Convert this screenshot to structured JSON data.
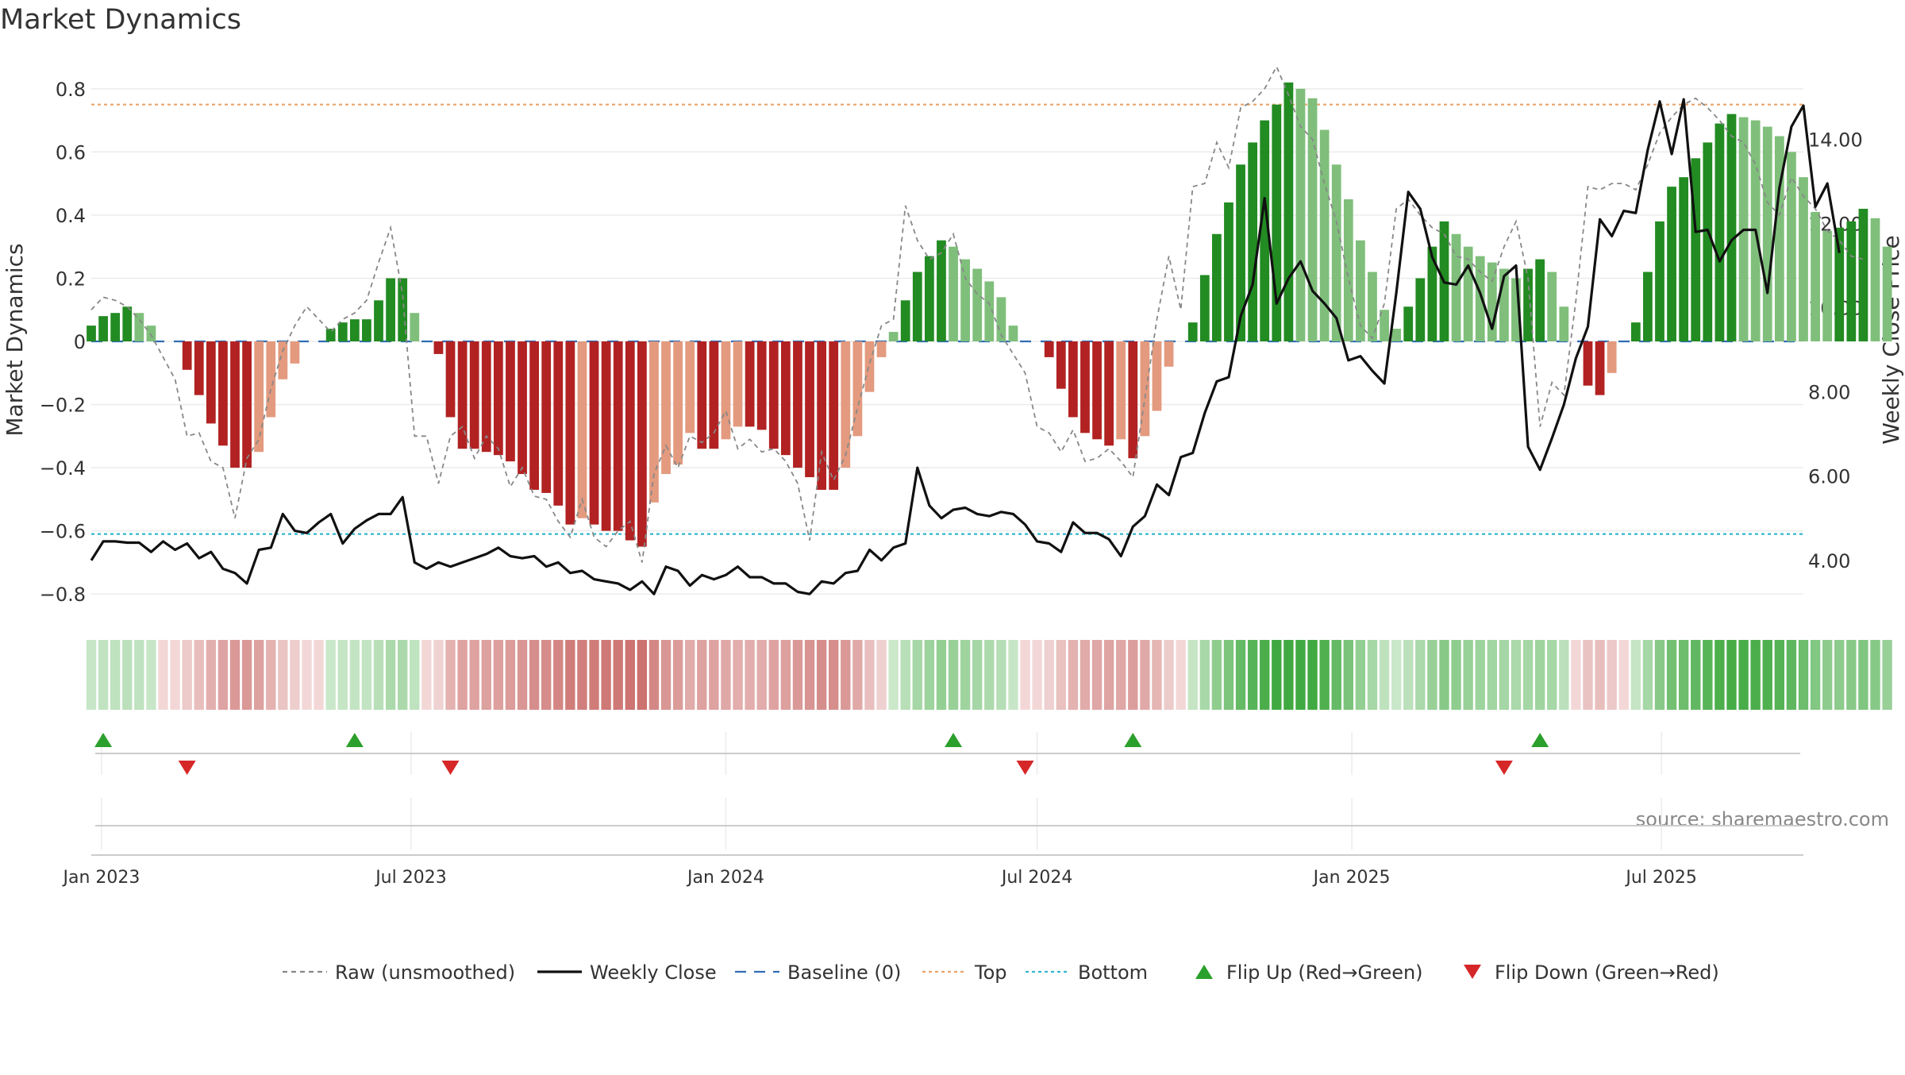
{
  "chart_data": {
    "type": "bar",
    "title": "Market Dynamics",
    "ylabel": "Market Dynamics",
    "y2label": "Weekly Close Price",
    "source": "source: sharemaestro.com",
    "ylim": [
      -0.88,
      0.88
    ],
    "y2lim": [
      2.6,
      15.8
    ],
    "yticks": [
      0.8,
      0.6,
      0.4,
      0.2,
      0,
      -0.2,
      -0.4,
      -0.6,
      -0.8
    ],
    "ytick_labels": [
      "0.8",
      "0.6",
      "0.4",
      "0.2",
      "0",
      "−0.2",
      "−0.4",
      "−0.6",
      "−0.8"
    ],
    "y2ticks": [
      14,
      12,
      10,
      8,
      6,
      4
    ],
    "y2tick_labels": [
      "14.00",
      "12.00",
      "10.00",
      "8.00",
      "6.00",
      "4.00"
    ],
    "x_range": [
      "2022-12-26",
      "2025-09-22"
    ],
    "xticks": [
      "2023-01-01",
      "2023-07-01",
      "2024-01-01",
      "2024-07-01",
      "2025-01-01",
      "2025-07-01"
    ],
    "xtick_labels": [
      "Jan 2023",
      "Jul 2023",
      "Jan 2024",
      "Jul 2024",
      "Jan 2025",
      "Jul 2025"
    ],
    "top_level": 0.75,
    "bottom_level": -0.61,
    "grid": true,
    "legend_position": "bottom-center",
    "legend": [
      {
        "label": "Raw (unsmoothed)",
        "kind": "dashed-line",
        "color": "#888888"
      },
      {
        "label": "Weekly Close",
        "kind": "line",
        "color": "#111111"
      },
      {
        "label": "Baseline (0)",
        "kind": "dashed-line",
        "color": "#2f6db3"
      },
      {
        "label": "Top",
        "kind": "dotted-line",
        "color": "#e8a36a"
      },
      {
        "label": "Bottom",
        "kind": "dotted-line",
        "color": "#33b6cf"
      },
      {
        "label": "Flip Up (Red→Green)",
        "kind": "triangle-up",
        "color": "#2ca02c"
      },
      {
        "label": "Flip Down (Green→Red)",
        "kind": "triangle-down",
        "color": "#d62728"
      }
    ],
    "colors": {
      "pos_strong": "#228b22",
      "pos_weak": "#7fbf7b",
      "neg_strong": "#b22222",
      "neg_weak": "#e39a7e",
      "grid": "#ebebeb"
    },
    "start_week": "2022-12-26",
    "series": [
      {
        "name": "Market Dynamics",
        "values": [
          0.05,
          0.08,
          0.09,
          0.11,
          0.09,
          0.05,
          0,
          0,
          -0.09,
          -0.17,
          -0.26,
          -0.33,
          -0.4,
          -0.4,
          -0.35,
          -0.24,
          -0.12,
          -0.07,
          0,
          0,
          0.04,
          0.06,
          0.07,
          0.07,
          0.13,
          0.2,
          0.2,
          0.09,
          0,
          -0.04,
          -0.24,
          -0.34,
          -0.34,
          -0.35,
          -0.36,
          -0.38,
          -0.42,
          -0.47,
          -0.48,
          -0.52,
          -0.58,
          -0.56,
          -0.58,
          -0.6,
          -0.6,
          -0.63,
          -0.65,
          -0.51,
          -0.42,
          -0.39,
          -0.29,
          -0.34,
          -0.34,
          -0.31,
          -0.27,
          -0.27,
          -0.28,
          -0.34,
          -0.36,
          -0.4,
          -0.43,
          -0.47,
          -0.47,
          -0.4,
          -0.3,
          -0.16,
          -0.05,
          0.03,
          0.13,
          0.22,
          0.27,
          0.32,
          0.3,
          0.26,
          0.23,
          0.19,
          0.14,
          0.05,
          0,
          0,
          -0.05,
          -0.15,
          -0.24,
          -0.29,
          -0.31,
          -0.33,
          -0.31,
          -0.37,
          -0.3,
          -0.22,
          -0.08,
          0,
          0.06,
          0.21,
          0.34,
          0.44,
          0.56,
          0.63,
          0.7,
          0.75,
          0.82,
          0.8,
          0.77,
          0.67,
          0.56,
          0.45,
          0.32,
          0.22,
          0.1,
          0.04,
          0.11,
          0.2,
          0.3,
          0.38,
          0.34,
          0.3,
          0.27,
          0.25,
          0.23,
          0.2,
          0.23,
          0.26,
          0.22,
          0.11,
          0,
          -0.14,
          -0.17,
          -0.1,
          0,
          0.06,
          0.22,
          0.38,
          0.49,
          0.52,
          0.58,
          0.63,
          0.69,
          0.72,
          0.71,
          0.7,
          0.68,
          0.65,
          0.6,
          0.52,
          0.41,
          0.35,
          0.36,
          0.38,
          0.42,
          0.39,
          0.3
        ]
      },
      {
        "name": "Raw (unsmoothed)",
        "values": [
          0.1,
          0.14,
          0.13,
          0.11,
          0.07,
          0.02,
          -0.05,
          -0.12,
          -0.3,
          -0.29,
          -0.38,
          -0.4,
          -0.56,
          -0.37,
          -0.31,
          -0.15,
          -0.03,
          0.05,
          0.11,
          0.07,
          0.03,
          0.07,
          0.09,
          0.13,
          0.25,
          0.36,
          0.15,
          -0.3,
          -0.3,
          -0.45,
          -0.3,
          -0.27,
          -0.37,
          -0.3,
          -0.34,
          -0.46,
          -0.4,
          -0.49,
          -0.5,
          -0.57,
          -0.62,
          -0.5,
          -0.62,
          -0.65,
          -0.6,
          -0.57,
          -0.7,
          -0.42,
          -0.33,
          -0.4,
          -0.3,
          -0.32,
          -0.29,
          -0.22,
          -0.34,
          -0.31,
          -0.35,
          -0.34,
          -0.38,
          -0.45,
          -0.63,
          -0.35,
          -0.44,
          -0.36,
          -0.21,
          -0.07,
          0.05,
          0.07,
          0.43,
          0.32,
          0.26,
          0.28,
          0.34,
          0.2,
          0.15,
          0.12,
          0.02,
          -0.04,
          -0.1,
          -0.27,
          -0.29,
          -0.35,
          -0.28,
          -0.38,
          -0.37,
          -0.34,
          -0.38,
          -0.43,
          -0.18,
          0.07,
          0.27,
          0.1,
          0.49,
          0.5,
          0.63,
          0.55,
          0.74,
          0.76,
          0.8,
          0.87,
          0.78,
          0.68,
          0.64,
          0.5,
          0.38,
          0.2,
          0.05,
          0.01,
          0.12,
          0.42,
          0.45,
          0.4,
          0.36,
          0.34,
          0.27,
          0.26,
          0.22,
          0.19,
          0.3,
          0.38,
          0.2,
          -0.27,
          -0.13,
          -0.17,
          0.13,
          0.49,
          0.48,
          0.5,
          0.5,
          0.48,
          0.56,
          0.66,
          0.71,
          0.75,
          0.77,
          0.74,
          0.7,
          0.65,
          0.63,
          0.56,
          0.44,
          0.4,
          0.52,
          0.46,
          0.42,
          0.35,
          0.32,
          0.27,
          0.26
        ]
      },
      {
        "name": "Weekly Close",
        "values": [
          4.0,
          4.45,
          4.45,
          4.42,
          4.42,
          4.2,
          4.45,
          4.25,
          4.4,
          4.05,
          4.2,
          3.8,
          3.7,
          3.45,
          4.25,
          4.3,
          5.1,
          4.7,
          4.65,
          4.9,
          5.1,
          4.4,
          4.75,
          4.95,
          5.1,
          5.1,
          5.5,
          3.95,
          3.8,
          3.95,
          3.85,
          3.95,
          4.05,
          4.15,
          4.3,
          4.1,
          4.05,
          4.1,
          3.85,
          3.95,
          3.7,
          3.75,
          3.55,
          3.5,
          3.45,
          3.3,
          3.5,
          3.2,
          3.85,
          3.75,
          3.4,
          3.65,
          3.55,
          3.65,
          3.85,
          3.6,
          3.6,
          3.45,
          3.45,
          3.25,
          3.2,
          3.5,
          3.45,
          3.7,
          3.75,
          4.25,
          4.0,
          4.3,
          4.4,
          6.2,
          5.3,
          5.0,
          5.2,
          5.25,
          5.1,
          5.05,
          5.15,
          5.1,
          4.85,
          4.45,
          4.4,
          4.2,
          4.9,
          4.65,
          4.65,
          4.5,
          4.1,
          4.8,
          5.05,
          5.8,
          5.55,
          6.45,
          6.55,
          7.5,
          8.25,
          8.35,
          9.8,
          10.55,
          12.6,
          10.1,
          10.7,
          11.1,
          10.4,
          10.1,
          9.75,
          8.75,
          8.85,
          8.5,
          8.2,
          10.35,
          12.75,
          12.35,
          11.2,
          10.6,
          10.55,
          11.0,
          10.35,
          9.5,
          10.75,
          11.0,
          6.7,
          6.15,
          6.9,
          7.7,
          8.8,
          9.55,
          12.1,
          11.7,
          12.3,
          12.25,
          13.75,
          14.9,
          13.65,
          14.95,
          11.8,
          11.85,
          11.1,
          11.6,
          11.85,
          11.85,
          10.35,
          12.85,
          14.3,
          14.8,
          12.4,
          12.95,
          11.3
        ]
      }
    ],
    "flips_up": [
      "2023-01-02",
      "2023-05-29",
      "2024-05-13",
      "2024-08-26",
      "2025-04-21"
    ],
    "flips_down": [
      "2023-02-20",
      "2023-07-24",
      "2024-06-24",
      "2025-03-31"
    ]
  }
}
